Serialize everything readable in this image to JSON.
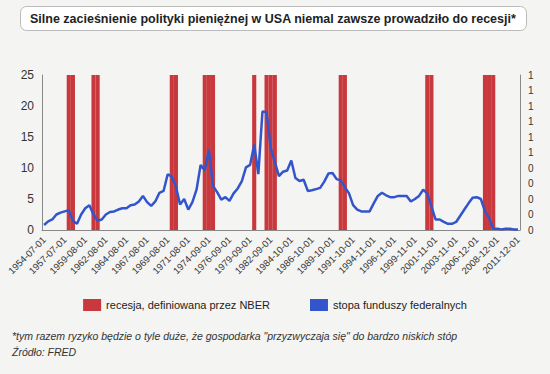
{
  "chart_data": {
    "type": "bar_line",
    "title": "Silne zacieśnienie polityki pieniężnej w USA niemal zawsze prowadziło do recesji*",
    "notes": [
      "*tym razem ryzyko będzie o tyle duże, że gospodarka \"przyzwyczaja się\" do bardzo niskich stóp",
      "Źródło: FRED"
    ],
    "categories": [
      "1954-07-01",
      null,
      null,
      null,
      null,
      "1957-07-01",
      null,
      null,
      null,
      null,
      "1959-08-01",
      null,
      null,
      null,
      null,
      "1962-08-01",
      null,
      null,
      null,
      null,
      "1964-08-01",
      null,
      null,
      null,
      null,
      "1967-08-01",
      null,
      null,
      null,
      null,
      "1969-08-01",
      null,
      null,
      null,
      null,
      "1971-08-01",
      null,
      null,
      null,
      null,
      "1974-09-01",
      null,
      null,
      null,
      null,
      "1976-09-01",
      null,
      null,
      null,
      null,
      "1979-09-01",
      null,
      null,
      null,
      null,
      "1982-09-01",
      null,
      null,
      null,
      null,
      "1984-10-01",
      null,
      null,
      null,
      null,
      "1986-10-01",
      null,
      null,
      null,
      null,
      "1989-10-01",
      null,
      null,
      null,
      null,
      "1991-10-01",
      null,
      null,
      null,
      null,
      "1994-11-01",
      null,
      null,
      null,
      null,
      "1996-11-01",
      null,
      null,
      null,
      null,
      "1999-11-01",
      null,
      null,
      null,
      null,
      "2001-11-01",
      null,
      null,
      null,
      null,
      "2003-11-01",
      null,
      null,
      null,
      null,
      "2006-12-01",
      null,
      null,
      null,
      null,
      "2008-12-01",
      null,
      null,
      null,
      null,
      "2011-12-01"
    ],
    "series": [
      {
        "name": "recesja, definiowana przez NBER",
        "type": "bar",
        "axis": "y2",
        "color": "#c8383c",
        "values": [
          null,
          null,
          null,
          null,
          null,
          null,
          1,
          1,
          null,
          null,
          null,
          null,
          1,
          1,
          null,
          null,
          null,
          null,
          null,
          null,
          null,
          null,
          null,
          null,
          null,
          null,
          null,
          null,
          null,
          null,
          null,
          1,
          1,
          null,
          null,
          null,
          null,
          null,
          null,
          1,
          1,
          1,
          null,
          null,
          null,
          null,
          null,
          null,
          null,
          null,
          null,
          1,
          null,
          null,
          1,
          1,
          1,
          null,
          null,
          null,
          null,
          null,
          null,
          null,
          null,
          null,
          null,
          null,
          null,
          null,
          null,
          null,
          1,
          1,
          null,
          null,
          null,
          null,
          null,
          null,
          null,
          null,
          null,
          null,
          null,
          null,
          null,
          null,
          null,
          null,
          null,
          null,
          null,
          1,
          1,
          null,
          null,
          null,
          null,
          null,
          null,
          null,
          null,
          null,
          null,
          null,
          null,
          1,
          1,
          1,
          null,
          null,
          null,
          null,
          null,
          null
        ]
      },
      {
        "name": "stopa funduszy federalnych",
        "type": "line",
        "color": "#3355cc",
        "values": [
          0.8,
          1.4,
          1.7,
          2.5,
          2.8,
          3.0,
          3.2,
          1.5,
          1.0,
          2.5,
          3.5,
          4.0,
          2.5,
          1.5,
          1.7,
          2.5,
          2.9,
          3.0,
          3.3,
          3.5,
          3.5,
          4.0,
          4.1,
          4.6,
          5.5,
          4.5,
          3.9,
          4.6,
          6.0,
          6.3,
          9.0,
          8.6,
          7.0,
          4.1,
          5.0,
          3.3,
          4.5,
          6.5,
          10.5,
          9.6,
          12.9,
          7.1,
          6.1,
          4.9,
          5.3,
          4.7,
          5.9,
          6.7,
          7.9,
          10.1,
          10.5,
          13.8,
          9.0,
          19.1,
          19.0,
          13.2,
          11.0,
          8.7,
          9.4,
          9.6,
          11.2,
          8.4,
          7.9,
          8.1,
          6.3,
          6.4,
          6.6,
          6.8,
          7.8,
          9.1,
          9.2,
          8.2,
          8.0,
          6.9,
          5.9,
          4.0,
          3.3,
          3.0,
          3.0,
          3.0,
          4.3,
          5.5,
          6.0,
          5.6,
          5.3,
          5.3,
          5.5,
          5.5,
          5.5,
          4.6,
          5.0,
          5.5,
          6.5,
          5.9,
          3.8,
          1.7,
          1.7,
          1.3,
          1.0,
          1.0,
          1.3,
          2.3,
          3.3,
          4.3,
          5.2,
          5.3,
          5.0,
          3.0,
          2.0,
          0.2,
          0.2,
          0.1,
          0.2,
          0.2,
          0.1,
          0.1
        ]
      }
    ],
    "ylim": [
      0,
      25
    ],
    "yticks": [
      0,
      5,
      10,
      15,
      20,
      25
    ],
    "y2lim": [
      0,
      1
    ],
    "y2ticks": [
      {
        "value": 0,
        "label": "0"
      },
      {
        "value": 0.1,
        "label": "0"
      },
      {
        "value": 0.2,
        "label": "0"
      },
      {
        "value": 0.3,
        "label": "0"
      },
      {
        "value": 0.4,
        "label": "0"
      },
      {
        "value": 0.5,
        "label": "1"
      },
      {
        "value": 0.6,
        "label": "1"
      },
      {
        "value": 0.7,
        "label": "1"
      },
      {
        "value": 0.8,
        "label": "1"
      },
      {
        "value": 0.9,
        "label": "1"
      },
      {
        "value": 1,
        "label": "1"
      }
    ],
    "grid": false,
    "legend": "bottom"
  }
}
